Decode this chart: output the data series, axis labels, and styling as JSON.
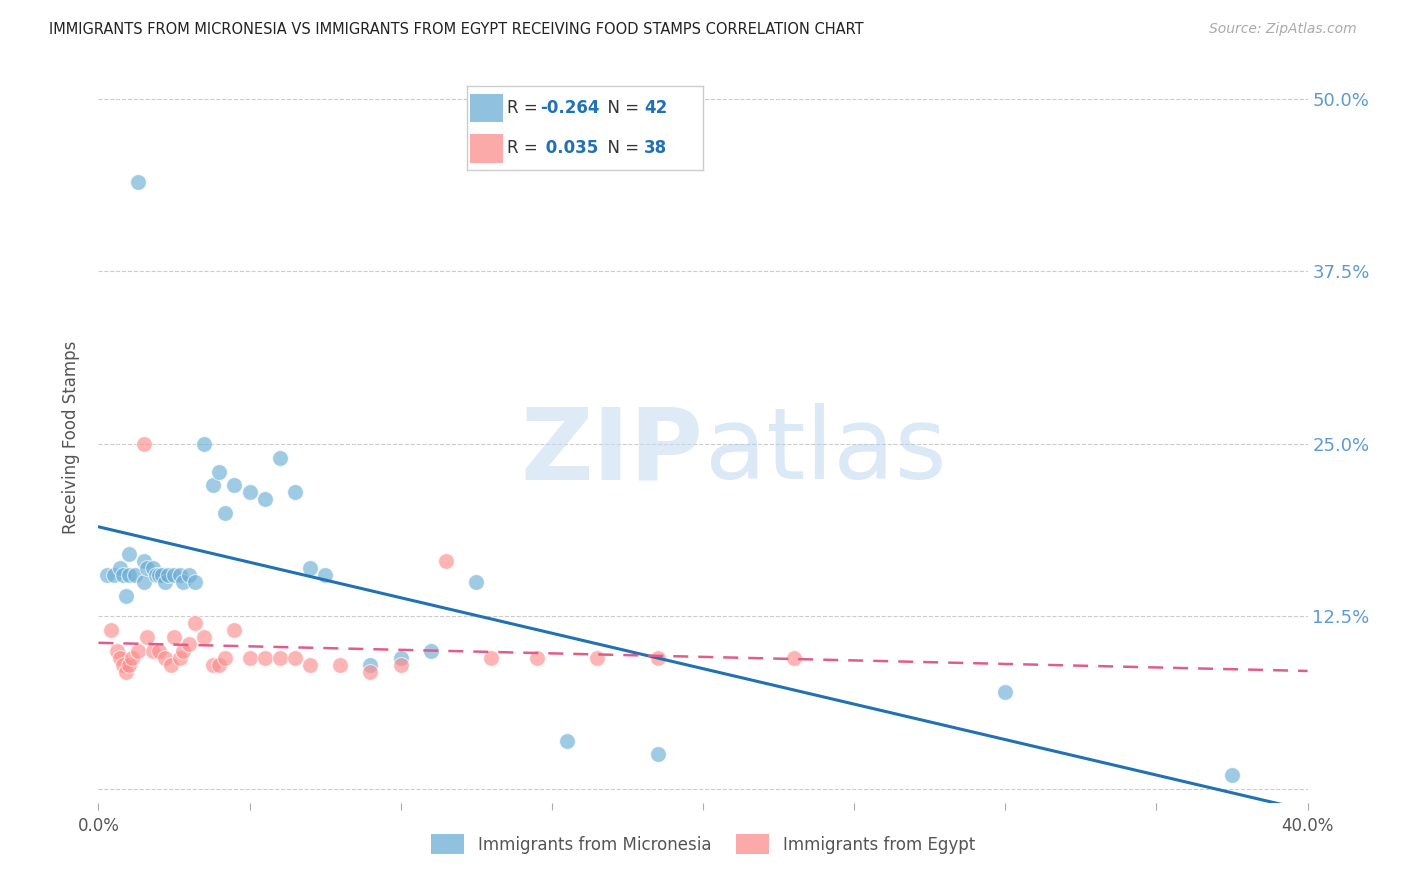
{
  "title": "IMMIGRANTS FROM MICRONESIA VS IMMIGRANTS FROM EGYPT RECEIVING FOOD STAMPS CORRELATION CHART",
  "source": "Source: ZipAtlas.com",
  "ylabel": "Receiving Food Stamps",
  "legend_micronesia": "Immigrants from Micronesia",
  "legend_egypt": "Immigrants from Egypt",
  "R_micronesia": -0.264,
  "N_micronesia": 42,
  "R_egypt": 0.035,
  "N_egypt": 38,
  "xlim": [
    0.0,
    0.4
  ],
  "ylim": [
    -0.01,
    0.52
  ],
  "yticks": [
    0.0,
    0.125,
    0.25,
    0.375,
    0.5
  ],
  "ytick_labels": [
    "",
    "12.5%",
    "25.0%",
    "37.5%",
    "50.0%"
  ],
  "xticks": [
    0.0,
    0.05,
    0.1,
    0.15,
    0.2,
    0.25,
    0.3,
    0.35,
    0.4
  ],
  "xtick_labels": [
    "0.0%",
    "",
    "",
    "",
    "",
    "",
    "",
    "",
    "40.0%"
  ],
  "color_micronesia": "#6baed6",
  "color_egypt": "#fc8d8d",
  "line_color_micronesia": "#2171b5",
  "line_color_egypt": "#e05c8a",
  "background_color": "#ffffff",
  "micronesia_x": [
    0.003,
    0.005,
    0.007,
    0.008,
    0.009,
    0.01,
    0.01,
    0.012,
    0.013,
    0.015,
    0.015,
    0.016,
    0.018,
    0.019,
    0.02,
    0.021,
    0.022,
    0.023,
    0.025,
    0.027,
    0.028,
    0.03,
    0.032,
    0.035,
    0.038,
    0.04,
    0.042,
    0.045,
    0.05,
    0.055,
    0.06,
    0.065,
    0.07,
    0.075,
    0.09,
    0.1,
    0.11,
    0.125,
    0.155,
    0.185,
    0.3,
    0.375
  ],
  "micronesia_y": [
    0.155,
    0.155,
    0.16,
    0.155,
    0.14,
    0.155,
    0.17,
    0.155,
    0.44,
    0.15,
    0.165,
    0.16,
    0.16,
    0.155,
    0.155,
    0.155,
    0.15,
    0.155,
    0.155,
    0.155,
    0.15,
    0.155,
    0.15,
    0.25,
    0.22,
    0.23,
    0.2,
    0.22,
    0.215,
    0.21,
    0.24,
    0.215,
    0.16,
    0.155,
    0.09,
    0.095,
    0.1,
    0.15,
    0.035,
    0.025,
    0.07,
    0.01
  ],
  "egypt_x": [
    0.004,
    0.006,
    0.007,
    0.008,
    0.009,
    0.01,
    0.011,
    0.013,
    0.015,
    0.016,
    0.018,
    0.02,
    0.022,
    0.024,
    0.025,
    0.027,
    0.028,
    0.03,
    0.032,
    0.035,
    0.038,
    0.04,
    0.042,
    0.045,
    0.05,
    0.055,
    0.06,
    0.065,
    0.07,
    0.08,
    0.09,
    0.1,
    0.115,
    0.13,
    0.145,
    0.165,
    0.185,
    0.23
  ],
  "egypt_y": [
    0.115,
    0.1,
    0.095,
    0.09,
    0.085,
    0.09,
    0.095,
    0.1,
    0.25,
    0.11,
    0.1,
    0.1,
    0.095,
    0.09,
    0.11,
    0.095,
    0.1,
    0.105,
    0.12,
    0.11,
    0.09,
    0.09,
    0.095,
    0.115,
    0.095,
    0.095,
    0.095,
    0.095,
    0.09,
    0.09,
    0.085,
    0.09,
    0.165,
    0.095,
    0.095,
    0.095,
    0.095,
    0.095
  ]
}
